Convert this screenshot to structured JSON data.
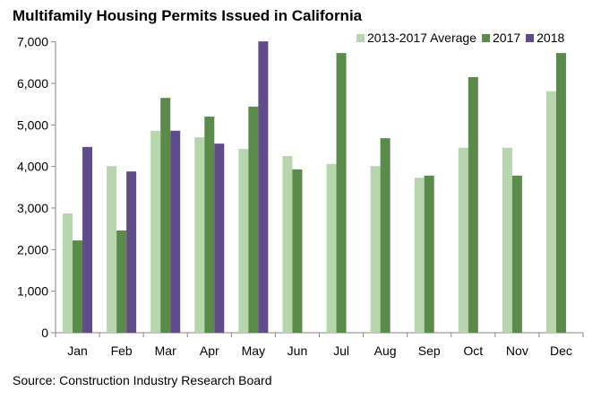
{
  "chart_data": {
    "type": "bar",
    "title": "Multifamily Housing Permits Issued in California",
    "source": "Source: Construction Industry Research Board",
    "xlabel": "",
    "ylabel": "",
    "ylim": [
      0,
      7000
    ],
    "yticks": [
      0,
      1000,
      2000,
      3000,
      4000,
      5000,
      6000,
      7000
    ],
    "ytick_labels": [
      "0",
      "1,000",
      "2,000",
      "3,000",
      "4,000",
      "5,000",
      "6,000",
      "7,000"
    ],
    "grid": false,
    "legend_position": "top-right",
    "categories": [
      "Jan",
      "Feb",
      "Mar",
      "Apr",
      "May",
      "Jun",
      "Jul",
      "Aug",
      "Sep",
      "Oct",
      "Nov",
      "Dec"
    ],
    "series": [
      {
        "name": "2013-2017 Average",
        "color": "#b8d6ad",
        "values": [
          2870,
          4010,
          4860,
          4700,
          4420,
          4250,
          4060,
          4010,
          3730,
          4450,
          4450,
          5810
        ]
      },
      {
        "name": "2017",
        "color": "#5b8b4b",
        "values": [
          2220,
          2460,
          5650,
          5200,
          5440,
          3930,
          6730,
          4680,
          3780,
          6150,
          3780,
          6730
        ]
      },
      {
        "name": "2018",
        "color": "#604c8a",
        "values": [
          4470,
          3880,
          4860,
          4550,
          7010,
          null,
          null,
          null,
          null,
          null,
          null,
          null
        ]
      }
    ]
  }
}
